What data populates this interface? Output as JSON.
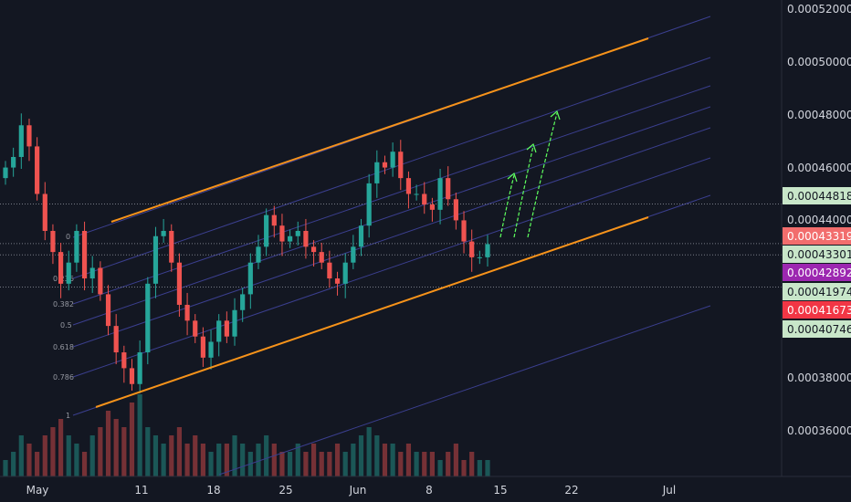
{
  "colors": {
    "background": "#131722",
    "axis_text": "#d1d4dc",
    "up": "#26a69a",
    "down": "#ef5350",
    "channel": "#f7931a",
    "fib_lines": "#3b3f8f",
    "arrows": "#5eff5e",
    "last_price": "#f23645"
  },
  "chart_data": {
    "type": "candlestick",
    "title": "",
    "ylim": [
      0.000345,
      0.000522
    ],
    "y_ticks": [
      "0.00052000",
      "0.00050000",
      "0.00048000",
      "0.00046000",
      "0.00044000",
      "0.00038000",
      "0.00036000"
    ],
    "x_ticks": [
      "May",
      "11",
      "18",
      "25",
      "Jun",
      "8",
      "15",
      "22",
      "Jul"
    ],
    "fib_levels": [
      "0",
      "0.236",
      "0.382",
      "0.5",
      "0.618",
      "0.786",
      "1"
    ],
    "price_labels": [
      {
        "text": "0.00044818",
        "color": "#c8e6c9",
        "text_color": "#131722"
      },
      {
        "text": "0.00043319",
        "color": "#f26d6d",
        "text_color": "#ffffff"
      },
      {
        "text": "0.00043301",
        "color": "#c8e6c9",
        "text_color": "#131722"
      },
      {
        "text": "0.00042892",
        "color": "#9c27b0",
        "text_color": "#ffffff"
      },
      {
        "text": "0.00041974",
        "color": "#c8e6c9",
        "text_color": "#131722"
      },
      {
        "text": "0.00041673",
        "color": "#f23645",
        "text_color": "#ffffff"
      },
      {
        "text": "0.00040746",
        "color": "#c8e6c9",
        "text_color": "#131722"
      }
    ],
    "price_lines": [
      0.00044818,
      0.00043319,
      0.00042892,
      0.00041673
    ],
    "candles_close": [
      0.000462,
      0.000466,
      0.000478,
      0.00047,
      0.000452,
      0.000438,
      0.00043,
      0.000418,
      0.000426,
      0.000438,
      0.00042,
      0.000424,
      0.000414,
      0.000402,
      0.000392,
      0.000386,
      0.00038,
      0.000392,
      0.000418,
      0.000436,
      0.000438,
      0.000426,
      0.00041,
      0.000404,
      0.000398,
      0.00039,
      0.000396,
      0.000404,
      0.000398,
      0.000408,
      0.000414,
      0.000426,
      0.000432,
      0.000444,
      0.00044,
      0.000434,
      0.000436,
      0.000438,
      0.000432,
      0.00043,
      0.000426,
      0.00042,
      0.000418,
      0.000426,
      0.000432,
      0.00044,
      0.000456,
      0.000464,
      0.000462,
      0.000468,
      0.000458,
      0.000452,
      0.000452,
      0.000448,
      0.000446,
      0.000458,
      0.00045,
      0.000442,
      0.000434,
      0.000428,
      0.000428,
      0.000433
    ],
    "volumes": [
      2,
      3,
      5,
      4,
      3,
      5,
      6,
      7,
      5,
      4,
      3,
      5,
      6,
      8,
      7,
      6,
      9,
      10,
      6,
      5,
      4,
      5,
      6,
      4,
      5,
      4,
      3,
      4,
      4,
      5,
      4,
      3,
      4,
      5,
      4,
      3,
      3,
      4,
      3,
      4,
      3,
      3,
      4,
      3,
      4,
      5,
      6,
      5,
      4,
      4,
      3,
      4,
      3,
      3,
      3,
      2,
      3,
      4,
      2,
      3,
      2,
      2
    ]
  }
}
